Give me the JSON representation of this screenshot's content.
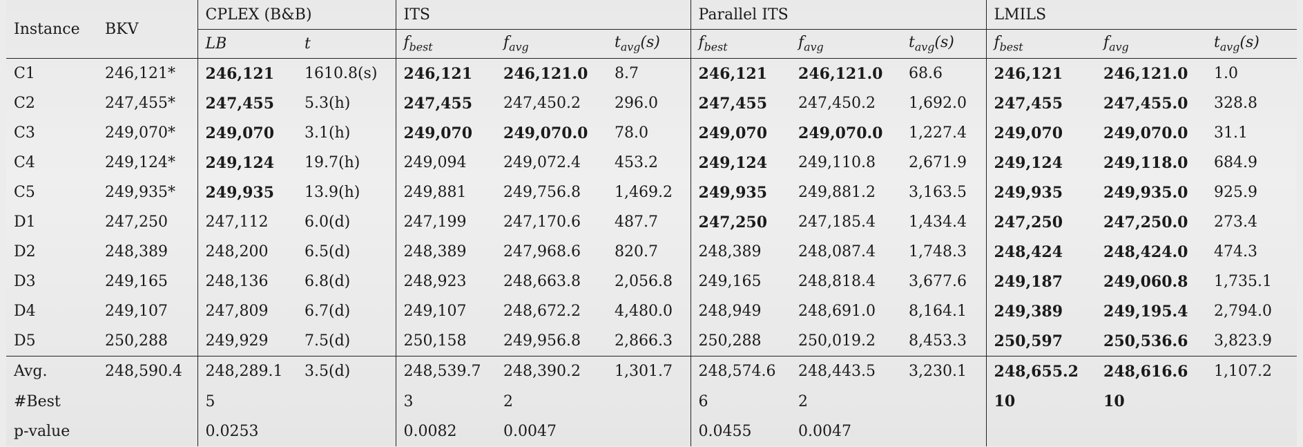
{
  "header": {
    "instance": "Instance",
    "bkv": "BKV",
    "groups": {
      "cplex": "CPLEX (B&B)",
      "its": "ITS",
      "parallel_its": "Parallel ITS",
      "lmils": "LMILS"
    },
    "sub": {
      "lb": "LB",
      "t": "t",
      "f": "f",
      "best": "best",
      "avg": "avg",
      "t_s": "(s)"
    }
  },
  "rows": [
    {
      "inst": "C1",
      "bkv": "246,121*",
      "lb": "246,121",
      "t": "1610.8(s)",
      "its_best": "246,121",
      "its_avg": "246,121.0",
      "its_t": "8.7",
      "pits_best": "246,121",
      "pits_avg": "246,121.0",
      "pits_t": "68.6",
      "lm_best": "246,121",
      "lm_avg": "246,121.0",
      "lm_t": "1.0"
    },
    {
      "inst": "C2",
      "bkv": "247,455*",
      "lb": "247,455",
      "t": "5.3(h)",
      "its_best": "247,455",
      "its_avg": "247,450.2",
      "its_t": "296.0",
      "pits_best": "247,455",
      "pits_avg": "247,450.2",
      "pits_t": "1,692.0",
      "lm_best": "247,455",
      "lm_avg": "247,455.0",
      "lm_t": "328.8"
    },
    {
      "inst": "C3",
      "bkv": "249,070*",
      "lb": "249,070",
      "t": "3.1(h)",
      "its_best": "249,070",
      "its_avg": "249,070.0",
      "its_t": "78.0",
      "pits_best": "249,070",
      "pits_avg": "249,070.0",
      "pits_t": "1,227.4",
      "lm_best": "249,070",
      "lm_avg": "249,070.0",
      "lm_t": "31.1"
    },
    {
      "inst": "C4",
      "bkv": "249,124*",
      "lb": "249,124",
      "t": "19.7(h)",
      "its_best": "249,094",
      "its_avg": "249,072.4",
      "its_t": "453.2",
      "pits_best": "249,124",
      "pits_avg": "249,110.8",
      "pits_t": "2,671.9",
      "lm_best": "249,124",
      "lm_avg": "249,118.0",
      "lm_t": "684.9"
    },
    {
      "inst": "C5",
      "bkv": "249,935*",
      "lb": "249,935",
      "t": "13.9(h)",
      "its_best": "249,881",
      "its_avg": "249,756.8",
      "its_t": "1,469.2",
      "pits_best": "249,935",
      "pits_avg": "249,881.2",
      "pits_t": "3,163.5",
      "lm_best": "249,935",
      "lm_avg": "249,935.0",
      "lm_t": "925.9"
    },
    {
      "inst": "D1",
      "bkv": "247,250",
      "lb": "247,112",
      "t": "6.0(d)",
      "its_best": "247,199",
      "its_avg": "247,170.6",
      "its_t": "487.7",
      "pits_best": "247,250",
      "pits_avg": "247,185.4",
      "pits_t": "1,434.4",
      "lm_best": "247,250",
      "lm_avg": "247,250.0",
      "lm_t": "273.4"
    },
    {
      "inst": "D2",
      "bkv": "248,389",
      "lb": "248,200",
      "t": "6.5(d)",
      "its_best": "248,389",
      "its_avg": "247,968.6",
      "its_t": "820.7",
      "pits_best": "248,389",
      "pits_avg": "248,087.4",
      "pits_t": "1,748.3",
      "lm_best": "248,424",
      "lm_avg": "248,424.0",
      "lm_t": "474.3"
    },
    {
      "inst": "D3",
      "bkv": "249,165",
      "lb": "248,136",
      "t": "6.8(d)",
      "its_best": "248,923",
      "its_avg": "248,663.8",
      "its_t": "2,056.8",
      "pits_best": "249,165",
      "pits_avg": "248,818.4",
      "pits_t": "3,677.6",
      "lm_best": "249,187",
      "lm_avg": "249,060.8",
      "lm_t": "1,735.1"
    },
    {
      "inst": "D4",
      "bkv": "249,107",
      "lb": "247,809",
      "t": "6.7(d)",
      "its_best": "249,107",
      "its_avg": "248,672.2",
      "its_t": "4,480.0",
      "pits_best": "248,949",
      "pits_avg": "248,691.0",
      "pits_t": "8,164.1",
      "lm_best": "249,389",
      "lm_avg": "249,195.4",
      "lm_t": "2,794.0"
    },
    {
      "inst": "D5",
      "bkv": "250,288",
      "lb": "249,929",
      "t": "7.5(d)",
      "its_best": "250,158",
      "its_avg": "249,956.8",
      "its_t": "2,866.3",
      "pits_best": "250,288",
      "pits_avg": "250,019.2",
      "pits_t": "8,453.3",
      "lm_best": "250,597",
      "lm_avg": "250,536.6",
      "lm_t": "3,823.9"
    }
  ],
  "summary": [
    {
      "inst": "Avg.",
      "bkv": "248,590.4",
      "lb": "248,289.1",
      "t": "3.5(d)",
      "its_best": "248,539.7",
      "its_avg": "248,390.2",
      "its_t": "1,301.7",
      "pits_best": "248,574.6",
      "pits_avg": "248,443.5",
      "pits_t": "3,230.1",
      "lm_best": "248,655.2",
      "lm_avg": "248,616.6",
      "lm_t": "1,107.2"
    },
    {
      "inst": "#Best",
      "bkv": "",
      "lb": "5",
      "t": "",
      "its_best": "3",
      "its_avg": "2",
      "its_t": "",
      "pits_best": "6",
      "pits_avg": "2",
      "pits_t": "",
      "lm_best": "10",
      "lm_avg": "10",
      "lm_t": ""
    },
    {
      "inst": "p-value",
      "bkv": "",
      "lb": "0.0253",
      "t": "",
      "its_best": "0.0082",
      "its_avg": "0.0047",
      "its_t": "",
      "pits_best": "0.0455",
      "pits_avg": "0.0047",
      "pits_t": "",
      "lm_best": "",
      "lm_avg": "",
      "lm_t": ""
    }
  ],
  "bold": {
    "rows": [
      [
        "lb",
        "its_best",
        "its_avg",
        "pits_best",
        "pits_avg",
        "lm_best",
        "lm_avg"
      ],
      [
        "lb",
        "its_best",
        "pits_best",
        "lm_best",
        "lm_avg"
      ],
      [
        "lb",
        "its_best",
        "its_avg",
        "pits_best",
        "pits_avg",
        "lm_best",
        "lm_avg"
      ],
      [
        "lb",
        "pits_best",
        "lm_best",
        "lm_avg"
      ],
      [
        "lb",
        "pits_best",
        "lm_best",
        "lm_avg"
      ],
      [
        "pits_best",
        "lm_best",
        "lm_avg"
      ],
      [
        "lm_best",
        "lm_avg"
      ],
      [
        "lm_best",
        "lm_avg"
      ],
      [
        "lm_best",
        "lm_avg"
      ],
      [
        "lm_best",
        "lm_avg"
      ]
    ],
    "summary": [
      [
        "lm_best",
        "lm_avg"
      ],
      [
        "lm_best",
        "lm_avg"
      ],
      []
    ]
  }
}
